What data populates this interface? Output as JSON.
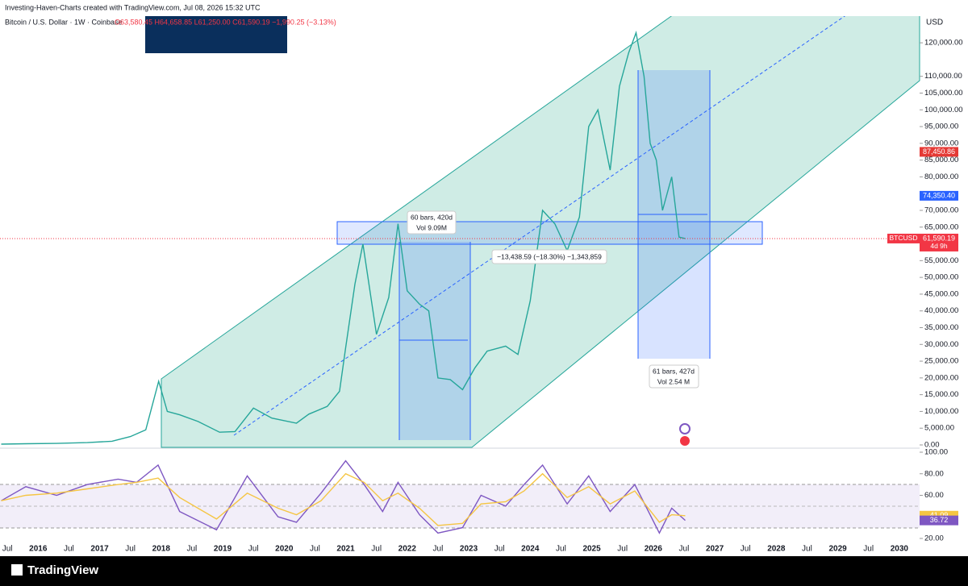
{
  "header": {
    "credit": "Investing-Haven-Charts created with TradingView.com, Jul 08, 2026 15:32 UTC",
    "symbol": "Bitcoin / U.S. Dollar · 1W · Coinbase",
    "ohlc": "O63,580.45 H64,658.85 L61,250.00 C61,590.19 −1,990.25 (−3.13%)",
    "currency": "USD",
    "brand": "TradingView"
  },
  "annotations": {
    "range1": [
      "60 bars, 420d",
      "Vol 9.09M"
    ],
    "measure": "−13,438.59 (−18.30%) −1,343,859",
    "range2": [
      "61 bars, 427d",
      "Vol 2.54 M"
    ]
  },
  "chart_data": [
    {
      "type": "line",
      "x": [
        2015.4,
        2015.8,
        2016.3,
        2016.8,
        2017.2,
        2017.5,
        2017.75,
        2017.96,
        2018.1,
        2018.3,
        2018.6,
        2018.95,
        2019.2,
        2019.5,
        2019.8,
        2020.2,
        2020.4,
        2020.7,
        2020.9,
        2021.0,
        2021.15,
        2021.28,
        2021.5,
        2021.7,
        2021.85,
        2022.0,
        2022.2,
        2022.35,
        2022.5,
        2022.7,
        2022.9,
        2023.1,
        2023.3,
        2023.6,
        2023.8,
        2024.0,
        2024.2,
        2024.4,
        2024.6,
        2024.8,
        2024.95,
        2025.1,
        2025.3,
        2025.45,
        2025.6,
        2025.72,
        2025.85,
        2025.95,
        2026.05,
        2026.15,
        2026.3,
        2026.42,
        2026.52
      ],
      "series": [
        {
          "name": "BTCUSD",
          "color": "#26a69a",
          "values": [
            250,
            350,
            450,
            700,
            1100,
            2500,
            4500,
            19000,
            10000,
            9000,
            7000,
            3800,
            4000,
            11000,
            8000,
            6500,
            9200,
            11500,
            16000,
            29000,
            48000,
            60000,
            33000,
            44000,
            66000,
            46000,
            42000,
            40000,
            20000,
            19500,
            16500,
            23000,
            28000,
            29500,
            27000,
            43000,
            70000,
            66000,
            58000,
            68000,
            95000,
            100000,
            82000,
            107000,
            117000,
            123000,
            110000,
            90000,
            85000,
            70000,
            80000,
            62000,
            61590.19
          ]
        }
      ],
      "xlim": [
        2015.38,
        2030.33
      ],
      "xticks": [
        {
          "value": 2015.5,
          "label": "Jul"
        },
        2016,
        {
          "value": 2016.5,
          "label": "Jul"
        },
        2017,
        {
          "value": 2017.5,
          "label": "Jul"
        },
        2018,
        {
          "value": 2018.5,
          "label": "Jul"
        },
        2019,
        {
          "value": 2019.5,
          "label": "Jul"
        },
        2020,
        {
          "value": 2020.5,
          "label": "Jul"
        },
        2021,
        {
          "value": 2021.5,
          "label": "Jul"
        },
        2022,
        {
          "value": 2022.5,
          "label": "Jul"
        },
        2023,
        {
          "value": 2023.5,
          "label": "Jul"
        },
        2024,
        {
          "value": 2024.5,
          "label": "Jul"
        },
        2025,
        {
          "value": 2025.5,
          "label": "Jul"
        },
        2026,
        {
          "value": 2026.5,
          "label": "Jul"
        },
        2027,
        {
          "value": 2027.5,
          "label": "Jul"
        },
        2028,
        {
          "value": 2028.5,
          "label": "Jul"
        },
        2029,
        {
          "value": 2029.5,
          "label": "Jul"
        },
        2030
      ],
      "ylim": [
        0,
        127000
      ],
      "yticks": [
        {
          "value": 0,
          "label": "0.00"
        },
        {
          "value": 5000,
          "label": "5,000.00"
        },
        {
          "value": 10000,
          "label": "10,000.00"
        },
        {
          "value": 15000,
          "label": "15,000.00"
        },
        {
          "value": 20000,
          "label": "20,000.00"
        },
        {
          "value": 25000,
          "label": "25,000.00"
        },
        {
          "value": 30000,
          "label": "30,000.00"
        },
        {
          "value": 35000,
          "label": "35,000.00"
        },
        {
          "value": 40000,
          "label": "40,000.00"
        },
        {
          "value": 45000,
          "label": "45,000.00"
        },
        {
          "value": 50000,
          "label": "50,000.00"
        },
        {
          "value": 55000,
          "label": "55,000.00"
        },
        {
          "value": 65000,
          "label": "65,000.00"
        },
        {
          "value": 70000,
          "label": "70,000.00"
        },
        {
          "value": 80000,
          "label": "80,000.00"
        },
        {
          "value": 85000,
          "label": "85,000.00"
        },
        {
          "value": 90000,
          "label": "90,000.00"
        },
        {
          "value": 95000,
          "label": "95,000.00"
        },
        {
          "value": 100000,
          "label": "100,000.00"
        },
        {
          "value": 105000,
          "label": "105,000.00"
        },
        {
          "value": 110000,
          "label": "110,000.00"
        },
        {
          "value": 120000,
          "label": "120,000.00"
        }
      ],
      "price_tags": [
        {
          "value": 87450.86,
          "label": "87,450.86",
          "color": "#e53935"
        },
        {
          "value": 74350.4,
          "label": "74,350.40",
          "color": "#2962ff"
        },
        {
          "value": 61590.19,
          "label": "61,590.19",
          "name": "BTCUSD",
          "countdown": "4d 9h",
          "color": "#f23645"
        }
      ]
    },
    {
      "type": "line",
      "x": [
        2015.4,
        2015.8,
        2016.3,
        2016.8,
        2017.3,
        2017.6,
        2017.95,
        2018.3,
        2018.9,
        2019.4,
        2019.9,
        2020.2,
        2020.6,
        2021.0,
        2021.3,
        2021.6,
        2021.85,
        2022.2,
        2022.5,
        2022.9,
        2023.2,
        2023.6,
        2023.9,
        2024.2,
        2024.6,
        2024.95,
        2025.3,
        2025.7,
        2026.1,
        2026.3,
        2026.52
      ],
      "series": [
        {
          "color": "#7e57c2",
          "values": [
            55,
            68,
            60,
            70,
            75,
            72,
            88,
            45,
            28,
            78,
            40,
            35,
            62,
            92,
            70,
            45,
            72,
            42,
            25,
            30,
            60,
            50,
            70,
            88,
            52,
            78,
            45,
            70,
            25,
            48,
            36.72
          ]
        },
        {
          "color": "#f5c542",
          "values": [
            55,
            60,
            62,
            66,
            70,
            72,
            76,
            58,
            38,
            62,
            48,
            42,
            55,
            80,
            72,
            55,
            62,
            48,
            32,
            34,
            52,
            54,
            64,
            80,
            58,
            68,
            52,
            64,
            35,
            42,
            41.09
          ]
        }
      ],
      "ylim": [
        17,
        100
      ],
      "yticks": [
        {
          "value": 100,
          "label": "100.00"
        },
        {
          "value": 80,
          "label": "80.00"
        },
        {
          "value": 60,
          "label": "60.00"
        },
        {
          "value": 20,
          "label": "20.00"
        }
      ],
      "price_tags": [
        {
          "value": 41.09,
          "label": "41.09",
          "color": "#f5c542"
        },
        {
          "value": 36.72,
          "label": "36.72",
          "color": "#7e57c2"
        }
      ]
    }
  ]
}
